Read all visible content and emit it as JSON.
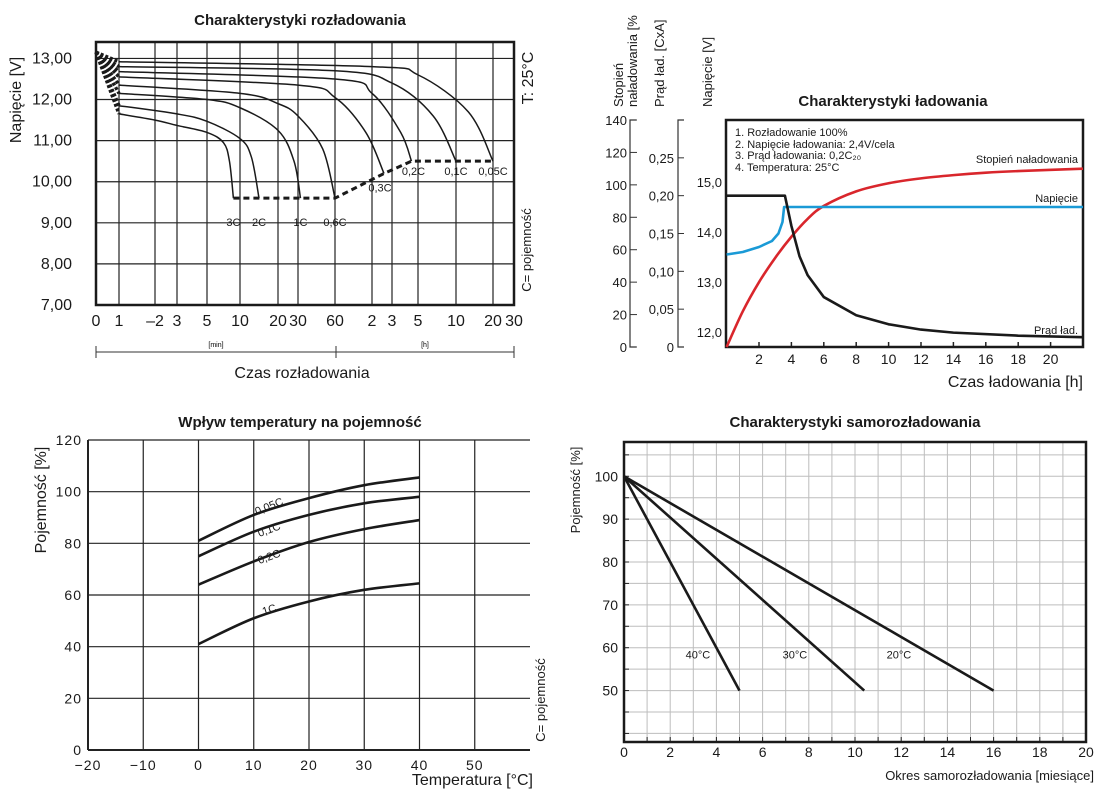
{
  "chart_data": [
    {
      "type": "line",
      "title": "Charakterystyki rozładowania",
      "ylabel": "Napięcie  [V]",
      "xlabel": "Czas rozładowania",
      "x_unit_labels": [
        "[min]",
        "[h]"
      ],
      "annotations": [
        "T: 25°C",
        "C= pojemność"
      ],
      "ylim": [
        7,
        13.4
      ],
      "yticks": [
        {
          "v": 13,
          "label": "13,00"
        },
        {
          "v": 12,
          "label": "12,00"
        },
        {
          "v": 11,
          "label": "11,00"
        },
        {
          "v": 10,
          "label": "10,00"
        },
        {
          "v": 9,
          "label": "9,00"
        },
        {
          "v": 8,
          "label": "8,00"
        },
        {
          "v": 7,
          "label": "7,00"
        }
      ],
      "xticks_minutes": [
        0,
        1,
        2,
        3,
        5,
        10,
        20,
        30,
        60,
        120,
        180,
        300,
        600,
        1200,
        1800
      ],
      "xtick_labels": [
        "0",
        "1",
        "–2",
        "3",
        "5",
        "10",
        "20",
        "30",
        "60",
        "2",
        "3",
        "5",
        "10",
        "20",
        "30"
      ],
      "grid": true,
      "series": [
        {
          "name": "3C",
          "points": [
            [
              1,
              11.65
            ],
            [
              2,
              11.5
            ],
            [
              3,
              11.37
            ],
            [
              5,
              11.2
            ],
            [
              7.5,
              10.95
            ],
            [
              8.4,
              10.5
            ],
            [
              9,
              9.6
            ]
          ]
        },
        {
          "name": "2C",
          "points": [
            [
              1,
              11.85
            ],
            [
              3,
              11.65
            ],
            [
              5,
              11.47
            ],
            [
              10,
              11.05
            ],
            [
              13,
              10.6
            ],
            [
              15,
              9.6
            ]
          ]
        },
        {
          "name": "1C",
          "points": [
            [
              1,
              12.15
            ],
            [
              5,
              12.0
            ],
            [
              10,
              11.8
            ],
            [
              20,
              11.25
            ],
            [
              28,
              10.5
            ],
            [
              32,
              9.6
            ]
          ]
        },
        {
          "name": "0,6C",
          "points": [
            [
              1,
              12.35
            ],
            [
              10,
              12.15
            ],
            [
              20,
              11.9
            ],
            [
              30,
              11.6
            ],
            [
              50,
              10.8
            ],
            [
              60,
              9.6
            ]
          ]
        },
        {
          "name": "0,3C",
          "points": [
            [
              1,
              12.55
            ],
            [
              30,
              12.35
            ],
            [
              60,
              12.05
            ],
            [
              110,
              11.2
            ],
            [
              156,
              10.2
            ]
          ]
        },
        {
          "name": "0,2C",
          "points": [
            [
              1,
              12.68
            ],
            [
              60,
              12.5
            ],
            [
              120,
              12.15
            ],
            [
              220,
              11.2
            ],
            [
              270,
              10.5
            ]
          ]
        },
        {
          "name": "0,1C",
          "points": [
            [
              1,
              12.8
            ],
            [
              60,
              12.7
            ],
            [
              180,
              12.4
            ],
            [
              420,
              11.6
            ],
            [
              600,
              10.5
            ]
          ]
        },
        {
          "name": "0,05C",
          "points": [
            [
              1,
              12.92
            ],
            [
              120,
              12.8
            ],
            [
              300,
              12.6
            ],
            [
              800,
              11.7
            ],
            [
              1200,
              10.5
            ]
          ]
        }
      ],
      "cutoff_voltage_line": [
        [
          9,
          9.6
        ],
        [
          60,
          9.6
        ],
        [
          156,
          10.2
        ],
        [
          270,
          10.5
        ],
        [
          1200,
          10.5
        ]
      ],
      "initial_voltage": 13.15
    },
    {
      "type": "line",
      "title": "Charakterystyki ładowania",
      "xlabel": "Czas ładowania [h]",
      "xlim": [
        0,
        22
      ],
      "xticks": [
        2,
        4,
        6,
        8,
        10,
        12,
        14,
        16,
        18,
        20
      ],
      "axes": {
        "soc": {
          "label_line1": "Stopień",
          "label_line2": "naładowania [%",
          "range": [
            0,
            140
          ],
          "ticks": [
            {
              "v": 0,
              "label": "0"
            },
            {
              "v": 20,
              "label": "20"
            },
            {
              "v": 40,
              "label": "40"
            },
            {
              "v": 60,
              "label": "60"
            },
            {
              "v": 80,
              "label": "80"
            },
            {
              "v": 100,
              "label": "100"
            },
            {
              "v": 120,
              "label": "120"
            },
            {
              "v": 140,
              "label": "140"
            }
          ]
        },
        "current": {
          "label": "Prąd ład.  [CxA]",
          "range": [
            0,
            0.3
          ],
          "ticks": [
            {
              "v": 0,
              "label": "0"
            },
            {
              "v": 0.05,
              "label": "0,05"
            },
            {
              "v": 0.1,
              "label": "0,10"
            },
            {
              "v": 0.15,
              "label": "0,15"
            },
            {
              "v": 0.2,
              "label": "0,20"
            },
            {
              "v": 0.25,
              "label": "0,25"
            }
          ]
        },
        "voltage": {
          "label": "Napięcie  [V]",
          "range": [
            11.7,
            16.24
          ],
          "ticks": [
            {
              "v": 12,
              "label": "12,0"
            },
            {
              "v": 13,
              "label": "13,0"
            },
            {
              "v": 14,
              "label": "14,0"
            },
            {
              "v": 15,
              "label": "15,0"
            }
          ]
        }
      },
      "notes": [
        "1. Rozładowanie 100%",
        "2. Napięcie ładowania: 2,4V/cela",
        "3. Prąd ładowania: 0,2C₂₀",
        "4. Temperatura: 25°C"
      ],
      "series": [
        {
          "name": "Stopień naładowania",
          "axis": "soc",
          "color": "#d9262c",
          "points": [
            [
              0,
              0
            ],
            [
              1,
              22
            ],
            [
              2,
              40
            ],
            [
              3,
              55
            ],
            [
              4,
              68
            ],
            [
              5,
              79
            ],
            [
              6,
              87
            ],
            [
              8,
              96
            ],
            [
              10,
              101
            ],
            [
              12,
              104
            ],
            [
              14,
              106
            ],
            [
              16,
              107.5
            ],
            [
              18,
              108.5
            ],
            [
              22,
              110
            ]
          ]
        },
        {
          "name": "Napięcie",
          "axis": "voltage",
          "color": "#1a9ad6",
          "points": [
            [
              0,
              13.55
            ],
            [
              1,
              13.6
            ],
            [
              2,
              13.7
            ],
            [
              2.8,
              13.82
            ],
            [
              3.2,
              13.97
            ],
            [
              3.45,
              14.2
            ],
            [
              3.55,
              14.5
            ],
            [
              22,
              14.5
            ]
          ]
        },
        {
          "name": "Prąd ład.",
          "axis": "current",
          "color": "#1a1a1a",
          "points": [
            [
              0,
              0.2
            ],
            [
              3.6,
              0.2
            ],
            [
              4,
              0.16
            ],
            [
              4.5,
              0.12
            ],
            [
              5,
              0.095
            ],
            [
              6,
              0.066
            ],
            [
              8,
              0.042
            ],
            [
              10,
              0.03
            ],
            [
              12,
              0.023
            ],
            [
              14,
              0.019
            ],
            [
              18,
              0.015
            ],
            [
              22,
              0.013
            ]
          ]
        }
      ]
    },
    {
      "type": "line",
      "title": "Wpływ temperatury na pojemność",
      "xlabel": "Temperatura [°C]",
      "ylabel": "Pojemność [%]",
      "annotation": "C= pojemność",
      "xlim": [
        -20,
        60
      ],
      "ylim": [
        0,
        120
      ],
      "xticks": [
        {
          "v": -20,
          "label": "−20"
        },
        {
          "v": -10,
          "label": "−10"
        },
        {
          "v": 0,
          "label": "0"
        },
        {
          "v": 10,
          "label": "10"
        },
        {
          "v": 20,
          "label": "20"
        },
        {
          "v": 30,
          "label": "30"
        },
        {
          "v": 40,
          "label": "40"
        },
        {
          "v": 50,
          "label": "50"
        }
      ],
      "yticks": [
        0,
        20,
        40,
        60,
        80,
        100,
        120
      ],
      "grid": true,
      "series": [
        {
          "name": "0,05C",
          "points": [
            [
              0,
              81
            ],
            [
              10,
              91
            ],
            [
              20,
              97.5
            ],
            [
              30,
              102.5
            ],
            [
              40,
              105.5
            ]
          ]
        },
        {
          "name": "0,1C",
          "points": [
            [
              0,
              75
            ],
            [
              10,
              84.5
            ],
            [
              20,
              91
            ],
            [
              30,
              95.5
            ],
            [
              40,
              98
            ]
          ]
        },
        {
          "name": "0,2C",
          "points": [
            [
              0,
              64
            ],
            [
              10,
              73
            ],
            [
              20,
              80.5
            ],
            [
              30,
              85.5
            ],
            [
              40,
              89
            ]
          ]
        },
        {
          "name": "1C",
          "points": [
            [
              0,
              41
            ],
            [
              10,
              51
            ],
            [
              20,
              57.5
            ],
            [
              30,
              62
            ],
            [
              40,
              64.5
            ]
          ]
        }
      ]
    },
    {
      "type": "line",
      "title": "Charakterystyki samorozładowania",
      "xlabel": "Okres samorozładowania [miesiące]",
      "ylabel": "Pojemność [%]",
      "xlim": [
        0,
        20
      ],
      "ylim": [
        38,
        108
      ],
      "xticks": [
        0,
        2,
        4,
        6,
        8,
        10,
        12,
        14,
        16,
        18,
        20
      ],
      "yticks": [
        50,
        60,
        70,
        80,
        90,
        100
      ],
      "grid": true,
      "series": [
        {
          "name": "40°C",
          "points": [
            [
              0,
              100
            ],
            [
              5,
              50
            ]
          ]
        },
        {
          "name": "30°C",
          "points": [
            [
              0,
              100
            ],
            [
              10.4,
              50
            ]
          ]
        },
        {
          "name": "20°C",
          "points": [
            [
              0,
              100
            ],
            [
              16,
              50
            ]
          ]
        }
      ]
    }
  ]
}
